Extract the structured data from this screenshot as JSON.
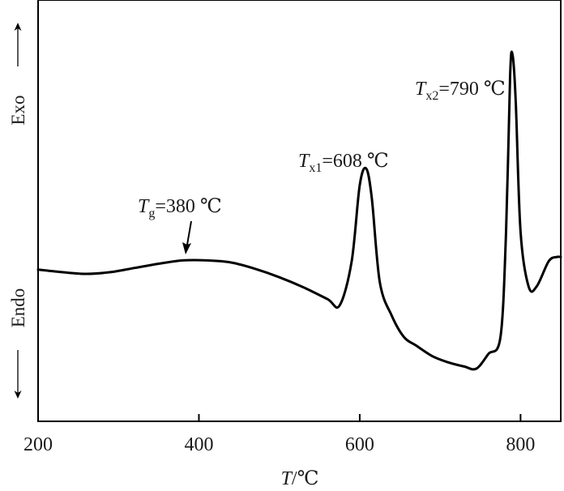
{
  "chart_data": {
    "type": "line",
    "xlabel": {
      "var": "T",
      "unit": "/℃"
    },
    "ylabel_top": "Exo",
    "ylabel_bottom": "Endo",
    "xlim": [
      200,
      850
    ],
    "xticks": [
      200,
      400,
      600,
      800
    ],
    "xtick_labels": [
      "200",
      "400",
      "600",
      "800"
    ],
    "yticks_shown": false,
    "grid": false,
    "line_color": "#000000",
    "series": [
      {
        "x": [
          200,
          230,
          260,
          290,
          320,
          350,
          380,
          410,
          440,
          470,
          500,
          530,
          560,
          575,
          590,
          600,
          608,
          615,
          625,
          640,
          655,
          670,
          690,
          710,
          730,
          745,
          760,
          775,
          782,
          787,
          790,
          794,
          800,
          810,
          820,
          835,
          845,
          850
        ],
        "y": [
          0.36,
          0.354,
          0.35,
          0.354,
          0.364,
          0.374,
          0.382,
          0.382,
          0.377,
          0.362,
          0.342,
          0.318,
          0.29,
          0.275,
          0.38,
          0.56,
          0.6,
          0.53,
          0.33,
          0.25,
          0.2,
          0.18,
          0.155,
          0.14,
          0.13,
          0.125,
          0.16,
          0.2,
          0.45,
          0.82,
          0.87,
          0.76,
          0.45,
          0.32,
          0.32,
          0.38,
          0.39,
          0.39
        ]
      }
    ],
    "annotations": [
      {
        "var": "T",
        "sub": "g",
        "value": "=380 ℃",
        "x": 380,
        "arrow": true
      },
      {
        "var": "T",
        "sub": "x1",
        "value": "=608 ℃",
        "x": 608,
        "arrow": false
      },
      {
        "var": "T",
        "sub": "x2",
        "value": "=790 ℃",
        "x": 790,
        "arrow": false
      }
    ]
  }
}
